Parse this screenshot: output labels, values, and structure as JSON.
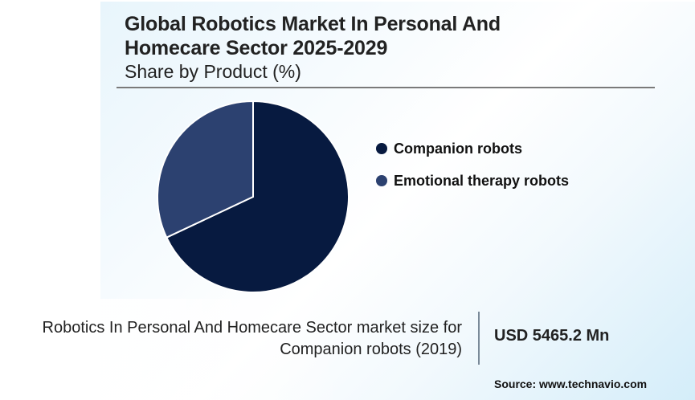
{
  "header": {
    "title_line1": "Global Robotics Market In Personal And",
    "title_line2": "Homecare Sector 2025-2029",
    "subtitle": "Share by Product (%)"
  },
  "legend": [
    {
      "label": "Companion robots",
      "color": "#071a40"
    },
    {
      "label": "Emotional therapy robots",
      "color": "#2c4170"
    }
  ],
  "stat": {
    "label_line1": "Robotics In Personal And Homecare Sector market size for",
    "label_line2": "Companion robots (2019)",
    "value": "USD 5465.2 Mn"
  },
  "source": "Source: www.technavio.com",
  "chart_data": {
    "type": "pie",
    "title": "Global Robotics Market In Personal And Homecare Sector 2025-2029",
    "subtitle": "Share by Product (%)",
    "categories": [
      "Companion robots",
      "Emotional therapy robots"
    ],
    "values": [
      68,
      32
    ],
    "colors": [
      "#071a40",
      "#2c4170"
    ],
    "start_angle": "12 o'clock, clockwise",
    "legend_position": "right"
  }
}
